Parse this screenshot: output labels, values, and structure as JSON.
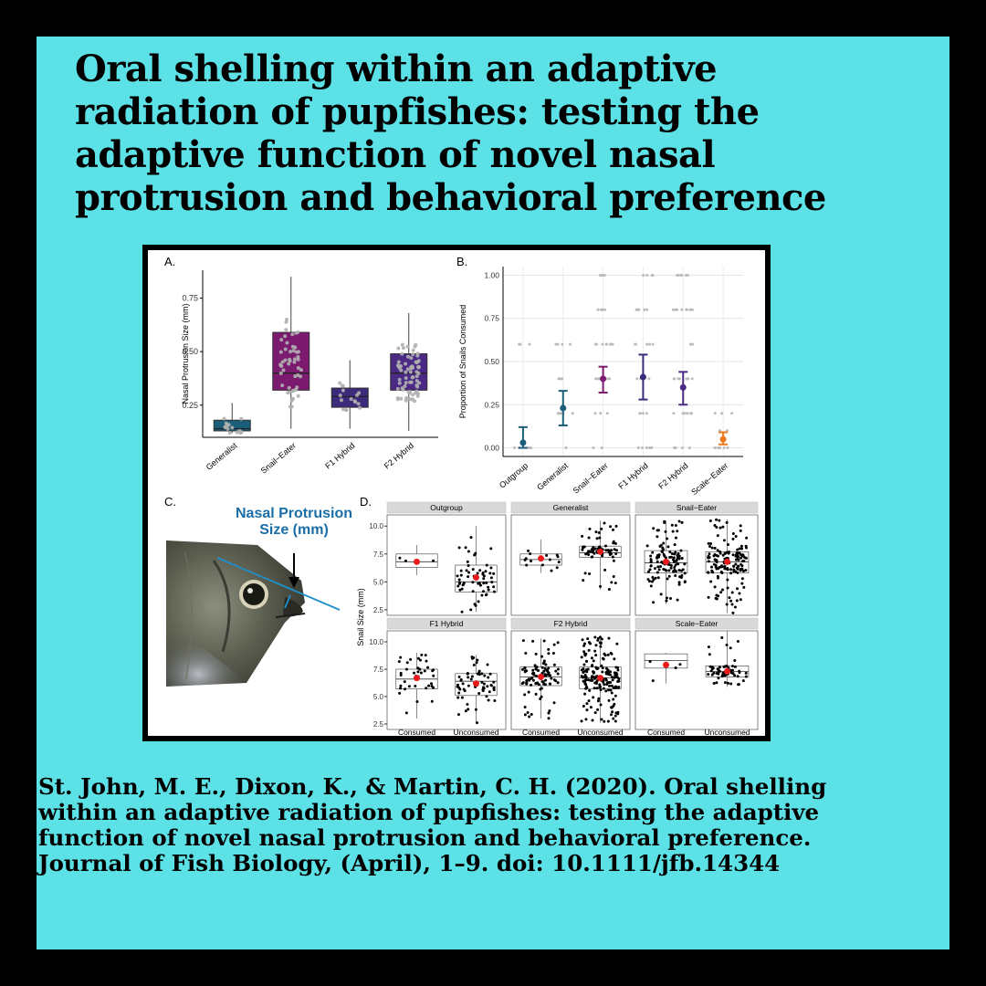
{
  "post": {
    "title": "Oral shelling within an adaptive radiation of pupfishes: testing the adaptive function of novel nasal protrusion and behavioral preference",
    "citation": "St. John, M. E., Dixon, K., & Martin, C. H. (2020). Oral shelling within an adaptive radiation of pupfishes: testing the adaptive function of novel nasal protrusion and behavioral preference. Journal of Fish Biology, (April), 1–9. doi: 10.1111/jfb.14344",
    "background_color": "#5ce1e6",
    "border_color": "#000000"
  },
  "figure": {
    "panel_a": {
      "label": "A.",
      "chart_data": {
        "type": "box",
        "ylabel": "Nasal Protrusion Size (mm)",
        "yticks": [
          "0.25",
          "0.50",
          "0.75"
        ],
        "ylim": [
          0.1,
          0.88
        ],
        "categories": [
          "Generalist",
          "Snail−Eater",
          "F1 Hybrid",
          "F2 Hybrid"
        ],
        "colors": [
          "#1a5e7a",
          "#7b1a6e",
          "#3c2a7a",
          "#4a2a85"
        ],
        "boxes": [
          {
            "min": 0.12,
            "q1": 0.13,
            "median": 0.14,
            "q3": 0.18,
            "max": 0.26
          },
          {
            "min": 0.14,
            "q1": 0.32,
            "median": 0.4,
            "q3": 0.59,
            "max": 0.85
          },
          {
            "min": 0.14,
            "q1": 0.24,
            "median": 0.29,
            "q3": 0.33,
            "max": 0.46
          },
          {
            "min": 0.13,
            "q1": 0.32,
            "median": 0.4,
            "q3": 0.49,
            "max": 0.68
          }
        ]
      }
    },
    "panel_b": {
      "label": "B.",
      "chart_data": {
        "type": "errorbar",
        "ylabel": "Proportion of Snails Consumed",
        "yticks": [
          "0.00",
          "0.25",
          "0.50",
          "0.75",
          "1.00"
        ],
        "ylim": [
          -0.05,
          1.05
        ],
        "categories": [
          "Outgroup",
          "Generalist",
          "Snail−Eater",
          "F1 Hybrid",
          "F2 Hybrid",
          "Scale−Eater"
        ],
        "colors": [
          "#1a5e7a",
          "#1a5e7a",
          "#7b1a6e",
          "#3c2a7a",
          "#4a2a85",
          "#f07818"
        ],
        "series": [
          {
            "name": "mean",
            "values": [
              0.03,
              0.23,
              0.4,
              0.41,
              0.35,
              0.05
            ]
          },
          {
            "name": "lower",
            "values": [
              0.0,
              0.13,
              0.32,
              0.28,
              0.25,
              0.02
            ]
          },
          {
            "name": "upper",
            "values": [
              0.12,
              0.33,
              0.47,
              0.54,
              0.44,
              0.09
            ]
          }
        ]
      }
    },
    "panel_c": {
      "label": "C.",
      "annotation_line1": "Nasal Protrusion",
      "annotation_line2": "Size (mm)"
    },
    "panel_d": {
      "label": "D.",
      "chart_data": {
        "type": "box",
        "ylabel": "Snail Size (mm)",
        "yticks": [
          "2.5",
          "5.0",
          "7.5",
          "10.0"
        ],
        "ylim": [
          2.0,
          11.0
        ],
        "categories": [
          "Consumed",
          "Unconsumed"
        ],
        "facets": [
          {
            "name": "Outgroup",
            "boxes": [
              {
                "min": 5.6,
                "q1": 6.3,
                "median": 6.8,
                "q3": 7.5,
                "max": 8.3,
                "mean": 6.8
              },
              {
                "min": 2.3,
                "q1": 4.1,
                "median": 5.0,
                "q3": 6.5,
                "max": 10.0,
                "mean": 5.4
              }
            ]
          },
          {
            "name": "Generalist",
            "boxes": [
              {
                "min": 5.8,
                "q1": 6.5,
                "median": 7.0,
                "q3": 7.5,
                "max": 8.8,
                "mean": 7.1
              },
              {
                "min": 4.3,
                "q1": 7.2,
                "median": 7.6,
                "q3": 8.2,
                "max": 10.5,
                "mean": 7.7
              }
            ]
          },
          {
            "name": "Snail−Eater",
            "boxes": [
              {
                "min": 3.0,
                "q1": 5.8,
                "median": 6.7,
                "q3": 7.8,
                "max": 10.5,
                "mean": 6.8
              },
              {
                "min": 2.2,
                "q1": 5.8,
                "median": 6.8,
                "q3": 7.7,
                "max": 10.6,
                "mean": 6.8
              }
            ]
          },
          {
            "name": "F1 Hybrid",
            "boxes": [
              {
                "min": 3.0,
                "q1": 5.7,
                "median": 6.6,
                "q3": 7.5,
                "max": 9.0,
                "mean": 6.7
              },
              {
                "min": 2.6,
                "q1": 5.1,
                "median": 6.4,
                "q3": 7.1,
                "max": 8.8,
                "mean": 6.2
              }
            ]
          },
          {
            "name": "F2 Hybrid",
            "boxes": [
              {
                "min": 3.0,
                "q1": 6.0,
                "median": 6.8,
                "q3": 7.7,
                "max": 10.3,
                "mean": 6.8
              },
              {
                "min": 2.6,
                "q1": 5.7,
                "median": 6.7,
                "q3": 7.7,
                "max": 10.5,
                "mean": 6.7
              }
            ]
          },
          {
            "name": "Scale−Eater",
            "boxes": [
              {
                "min": 6.2,
                "q1": 7.6,
                "median": 8.3,
                "q3": 8.9,
                "max": 9.0,
                "mean": 7.9
              },
              {
                "min": 5.9,
                "q1": 6.8,
                "median": 7.3,
                "q3": 7.8,
                "max": 11.0,
                "mean": 7.3
              }
            ]
          }
        ]
      }
    }
  }
}
